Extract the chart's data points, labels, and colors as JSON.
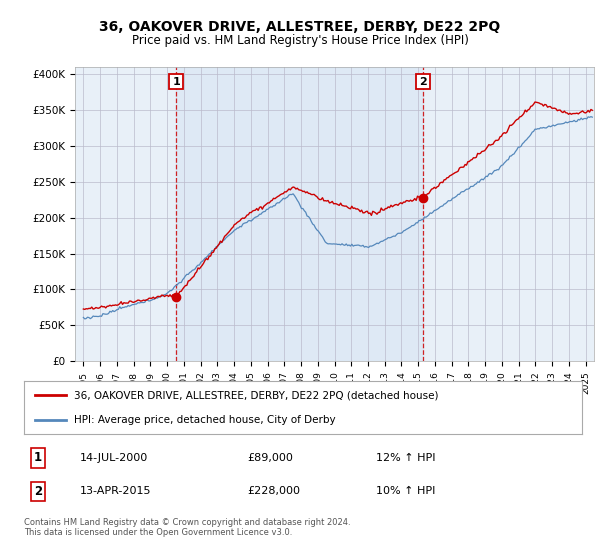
{
  "title": "36, OAKOVER DRIVE, ALLESTREE, DERBY, DE22 2PQ",
  "subtitle": "Price paid vs. HM Land Registry's House Price Index (HPI)",
  "sale1_date": 2000.54,
  "sale1_price": 89000,
  "sale1_label": "1",
  "sale1_text": "14-JUL-2000",
  "sale1_amount": "£89,000",
  "sale1_hpi": "12% ↑ HPI",
  "sale2_date": 2015.28,
  "sale2_price": 228000,
  "sale2_label": "2",
  "sale2_text": "13-APR-2015",
  "sale2_amount": "£228,000",
  "sale2_hpi": "10% ↑ HPI",
  "red_line_color": "#cc0000",
  "blue_line_color": "#5588bb",
  "vline_color": "#cc0000",
  "shade_color": "#ddeeff",
  "ylim": [
    0,
    410000
  ],
  "yticks": [
    0,
    50000,
    100000,
    150000,
    200000,
    250000,
    300000,
    350000,
    400000
  ],
  "ytick_labels": [
    "£0",
    "£50K",
    "£100K",
    "£150K",
    "£200K",
    "£250K",
    "£300K",
    "£350K",
    "£400K"
  ],
  "xlim": [
    1994.5,
    2025.5
  ],
  "xticks": [
    1995,
    1996,
    1997,
    1998,
    1999,
    2000,
    2001,
    2002,
    2003,
    2004,
    2005,
    2006,
    2007,
    2008,
    2009,
    2010,
    2011,
    2012,
    2013,
    2014,
    2015,
    2016,
    2017,
    2018,
    2019,
    2020,
    2021,
    2022,
    2023,
    2024,
    2025
  ],
  "legend_red": "36, OAKOVER DRIVE, ALLESTREE, DERBY, DE22 2PQ (detached house)",
  "legend_blue": "HPI: Average price, detached house, City of Derby",
  "footer": "Contains HM Land Registry data © Crown copyright and database right 2024.\nThis data is licensed under the Open Government Licence v3.0.",
  "bg_color": "#ffffff",
  "plot_bg_color": "#e8f0f8"
}
